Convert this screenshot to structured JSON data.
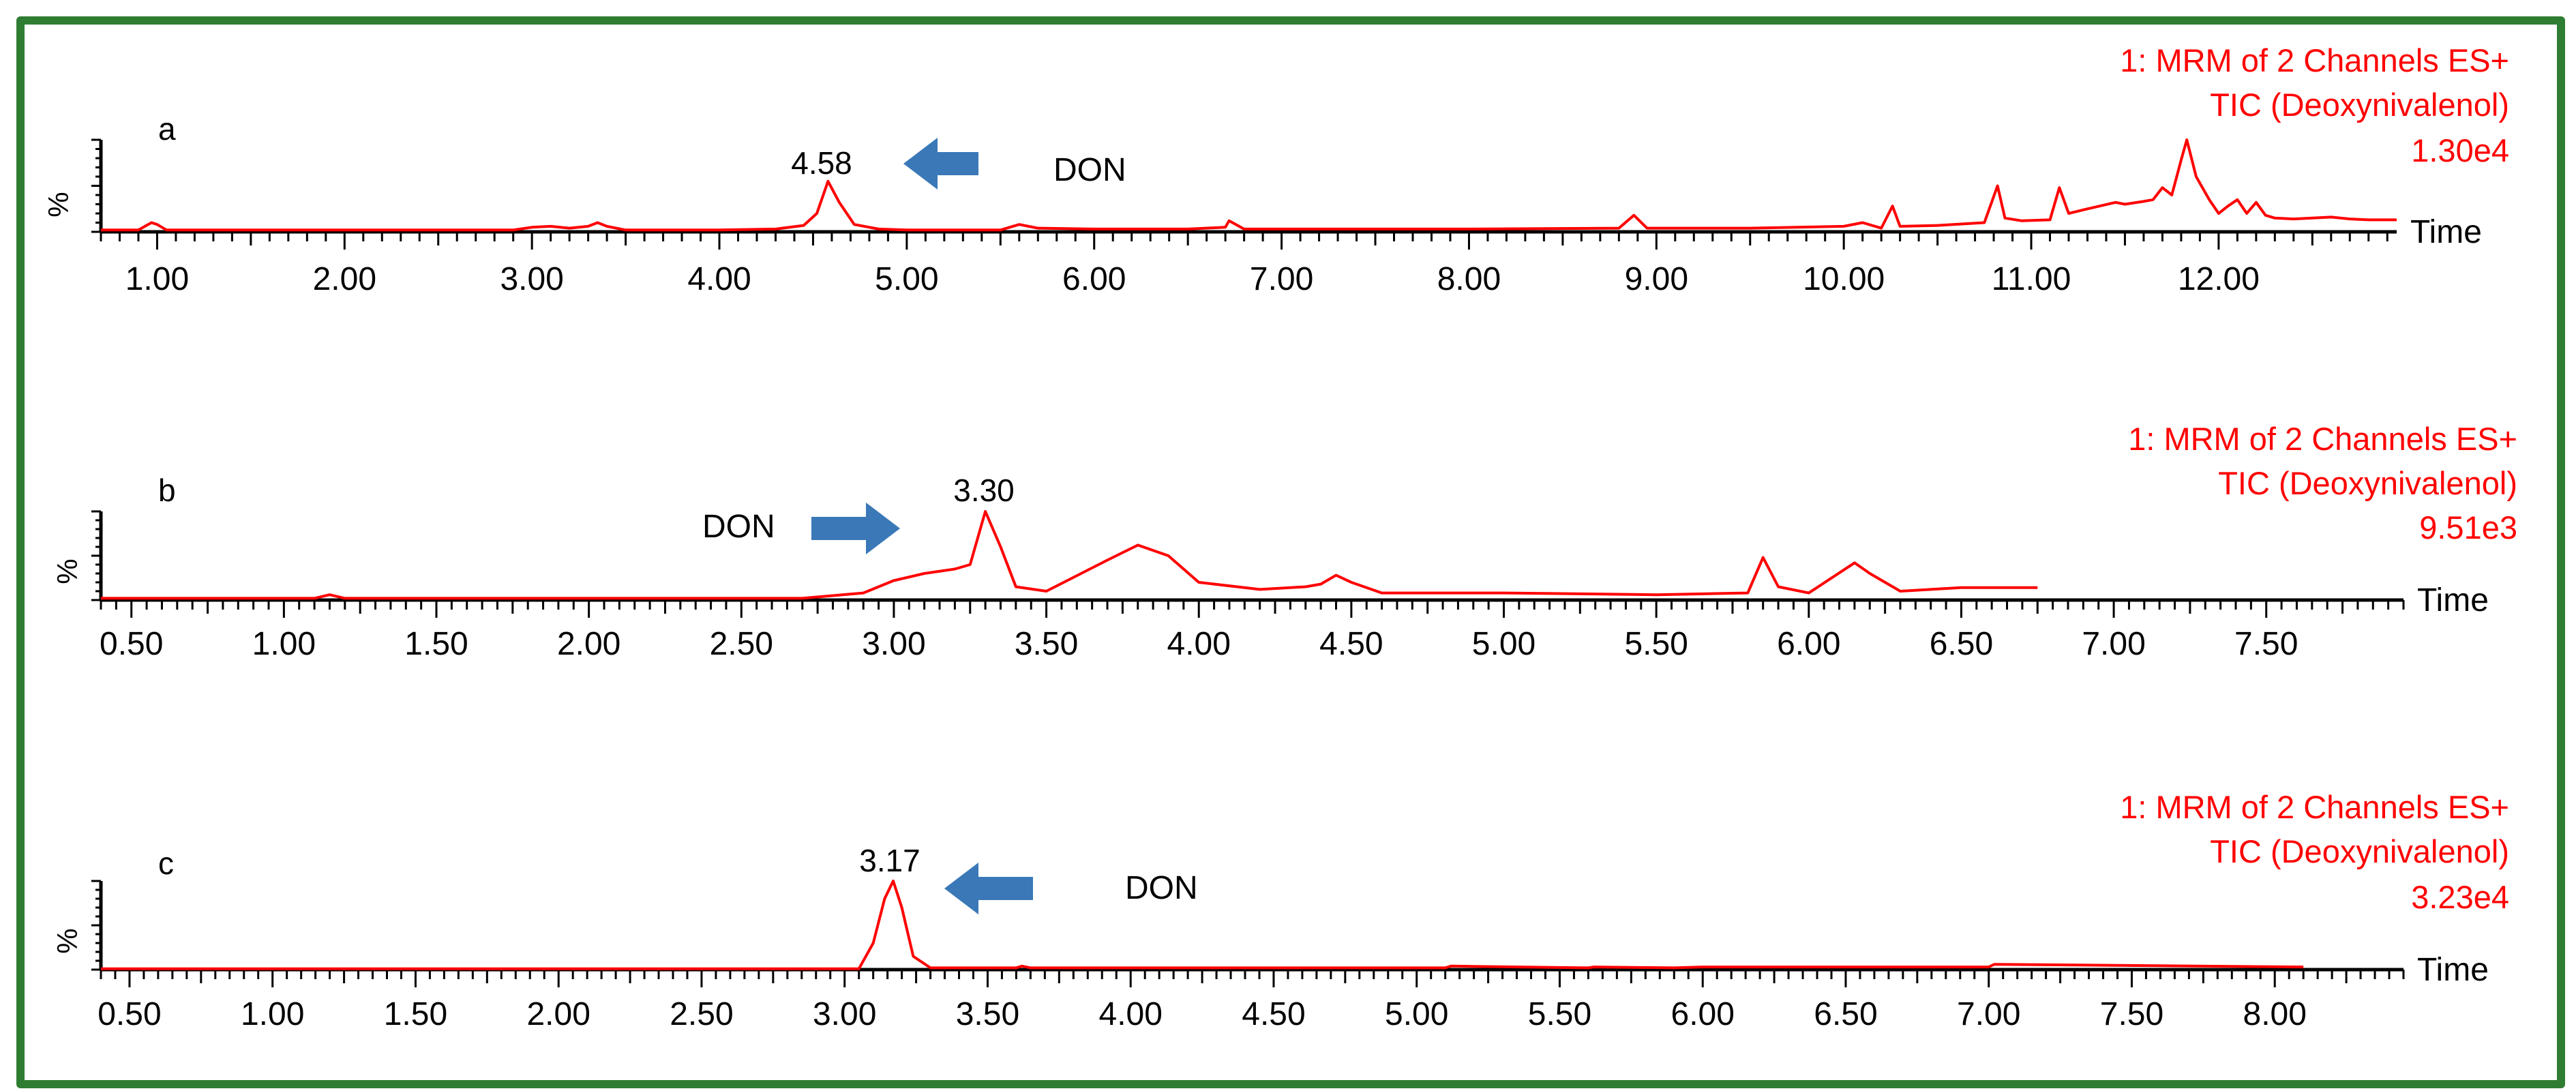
{
  "colors": {
    "border": "#2f7d32",
    "trace": "#ff0000",
    "header": "#ff0000",
    "arrow": "#3a78b8",
    "axis": "#000000"
  },
  "chart_data": [
    {
      "type": "line",
      "panel_label": "a",
      "header": [
        "1: MRM of 2 Channels ES+",
        "TIC (Deoxynivalenol)",
        "1.30e4"
      ],
      "ylabel": "%",
      "xlabel": "Time",
      "xlim": [
        0.7,
        12.95
      ],
      "ylim": [
        0,
        100
      ],
      "tick_labels": [
        "1.00",
        "2.00",
        "3.00",
        "4.00",
        "5.00",
        "6.00",
        "7.00",
        "8.00",
        "9.00",
        "10.00",
        "11.00",
        "12.00"
      ],
      "peak_label": "4.58",
      "annotation": {
        "text": "DON",
        "arrow": "left"
      },
      "x": [
        0.7,
        0.9,
        0.97,
        1.0,
        1.05,
        1.2,
        2.0,
        2.9,
        3.0,
        3.1,
        3.2,
        3.3,
        3.35,
        3.4,
        3.5,
        4.0,
        4.3,
        4.45,
        4.52,
        4.58,
        4.64,
        4.72,
        4.85,
        5.0,
        5.5,
        5.6,
        5.7,
        6.0,
        6.5,
        6.7,
        6.72,
        6.8,
        7.0,
        8.0,
        8.8,
        8.88,
        8.95,
        9.5,
        10.0,
        10.1,
        10.2,
        10.26,
        10.3,
        10.5,
        10.75,
        10.82,
        10.86,
        10.95,
        11.1,
        11.15,
        11.2,
        11.3,
        11.45,
        11.5,
        11.6,
        11.65,
        11.7,
        11.75,
        11.8,
        11.83,
        11.88,
        11.95,
        12.0,
        12.05,
        12.1,
        12.15,
        12.2,
        12.25,
        12.3,
        12.4,
        12.5,
        12.6,
        12.7,
        12.8,
        12.95
      ],
      "y": [
        2,
        2,
        10,
        8,
        2,
        2,
        2,
        2,
        5,
        6,
        4,
        6,
        10,
        6,
        2,
        2,
        3,
        7,
        20,
        55,
        32,
        8,
        3,
        2,
        2,
        8,
        4,
        3,
        3,
        5,
        12,
        3,
        3,
        3,
        4,
        18,
        4,
        4,
        6,
        10,
        4,
        28,
        6,
        7,
        10,
        50,
        15,
        12,
        13,
        48,
        20,
        25,
        32,
        30,
        33,
        35,
        48,
        40,
        78,
        100,
        60,
        35,
        20,
        28,
        35,
        20,
        32,
        18,
        15,
        14,
        15,
        16,
        14,
        13,
        13
      ]
    },
    {
      "type": "line",
      "panel_label": "b",
      "header": [
        "1: MRM of 2 Channels ES+",
        "TIC (Deoxynivalenol)",
        "9.51e3"
      ],
      "ylabel": "%",
      "xlabel": "Time",
      "xlim": [
        0.4,
        7.95
      ],
      "ylim": [
        0,
        100
      ],
      "tick_labels": [
        "0.50",
        "1.00",
        "1.50",
        "2.00",
        "2.50",
        "3.00",
        "3.50",
        "4.00",
        "4.50",
        "5.00",
        "5.50",
        "6.00",
        "6.50",
        "7.00",
        "7.50"
      ],
      "peak_label": "3.30",
      "annotation": {
        "text": "DON",
        "arrow": "right"
      },
      "x": [
        0.4,
        1.1,
        1.15,
        1.2,
        2.7,
        2.8,
        2.9,
        3.0,
        3.1,
        3.2,
        3.25,
        3.3,
        3.35,
        3.4,
        3.5,
        3.7,
        3.8,
        3.9,
        4.0,
        4.2,
        4.35,
        4.4,
        4.45,
        4.5,
        4.6,
        4.8,
        5.0,
        5.5,
        5.8,
        5.85,
        5.9,
        6.0,
        6.15,
        6.2,
        6.3,
        6.4,
        6.5,
        6.75
      ],
      "y": [
        2,
        2,
        6,
        2,
        2,
        5,
        8,
        22,
        30,
        35,
        40,
        100,
        60,
        15,
        10,
        45,
        62,
        50,
        20,
        12,
        15,
        18,
        28,
        20,
        8,
        8,
        8,
        6,
        8,
        48,
        15,
        8,
        42,
        30,
        10,
        12,
        14,
        14
      ]
    },
    {
      "type": "line",
      "panel_label": "c",
      "header": [
        "1: MRM of 2 Channels ES+",
        "TIC (Deoxynivalenol)",
        "3.23e4"
      ],
      "ylabel": "%",
      "xlabel": "Time",
      "xlim": [
        0.4,
        8.45
      ],
      "ylim": [
        0,
        100
      ],
      "tick_labels": [
        "0.50",
        "1.00",
        "1.50",
        "2.00",
        "2.50",
        "3.00",
        "3.50",
        "4.00",
        "4.50",
        "5.00",
        "5.50",
        "6.00",
        "6.50",
        "7.00",
        "7.50",
        "8.00"
      ],
      "peak_label": "3.17",
      "annotation": {
        "text": "DON",
        "arrow": "left"
      },
      "x": [
        0.4,
        3.05,
        3.1,
        3.14,
        3.17,
        3.2,
        3.24,
        3.3,
        3.6,
        3.62,
        3.65,
        5.1,
        5.12,
        5.6,
        5.62,
        5.9,
        6.0,
        6.4,
        7.0,
        7.02,
        8.1
      ],
      "y": [
        1,
        1,
        30,
        80,
        100,
        70,
        15,
        2,
        2,
        4,
        2,
        2,
        4,
        2,
        3,
        2,
        3,
        3,
        3,
        6,
        3
      ]
    }
  ]
}
